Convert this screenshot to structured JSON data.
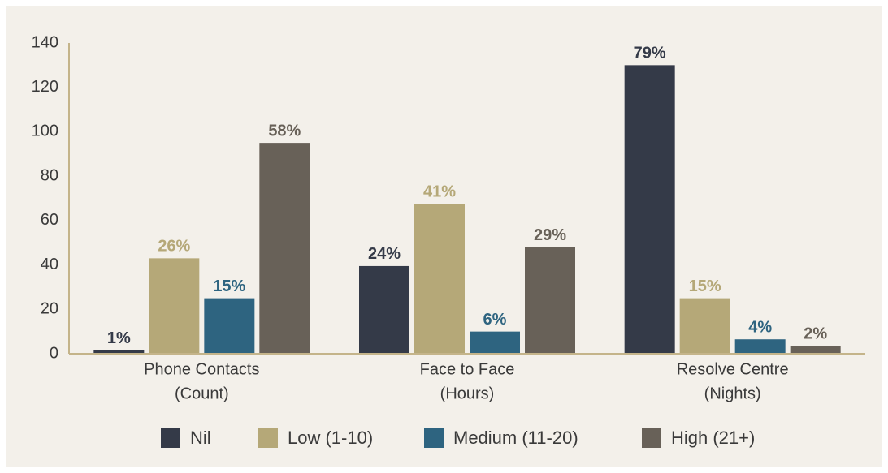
{
  "chart_data": {
    "type": "bar",
    "categories": [
      [
        "Phone Contacts",
        "(Count)"
      ],
      [
        "Face to Face",
        "(Hours)"
      ],
      [
        "Resolve Centre",
        "(Nights)"
      ]
    ],
    "series": [
      {
        "name": "Nil",
        "color": "#343a48",
        "values": [
          1.5,
          39.5,
          130
        ],
        "data_labels": [
          "1%",
          "24%",
          "79%"
        ]
      },
      {
        "name": "Low (1-10)",
        "color": "#b5a878",
        "values": [
          43,
          67.5,
          25
        ],
        "data_labels": [
          "26%",
          "41%",
          "15%"
        ]
      },
      {
        "name": "Medium (11-20)",
        "color": "#2e6480",
        "values": [
          25,
          10,
          6.5
        ],
        "data_labels": [
          "15%",
          "6%",
          "4%"
        ]
      },
      {
        "name": "High (21+)",
        "color": "#686158",
        "values": [
          95,
          48,
          3.5
        ],
        "data_labels": [
          "58%",
          "29%",
          "2%"
        ]
      }
    ],
    "ylim": [
      0,
      140
    ],
    "yticks": [
      0,
      20,
      40,
      60,
      80,
      100,
      120,
      140
    ],
    "grid": false,
    "legend": "bottom"
  }
}
